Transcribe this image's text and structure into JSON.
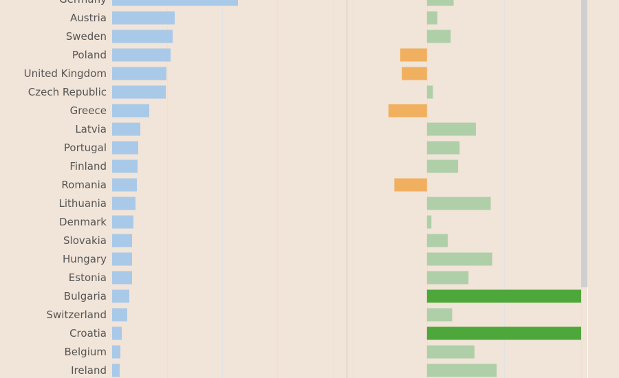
{
  "colors": {
    "background": "#f1e4d8",
    "gridline": "#e3e3e3",
    "left_bar": "#a9c9e8",
    "decrease": "#f0b060",
    "increase_light": "#aecfa8",
    "increase_strong": "#4ea73a",
    "separator": "#c9c4be",
    "scrollbar": "#cfcfcf",
    "label_text": "#555555"
  },
  "chart_data": [
    {
      "type": "bar",
      "orientation": "horizontal",
      "categories": [
        "Germany",
        "Austria",
        "Sweden",
        "Poland",
        "United Kingdom",
        "Czech Republic",
        "Greece",
        "Latvia",
        "Portugal",
        "Finland",
        "Romania",
        "Lithuania",
        "Denmark",
        "Slovakia",
        "Hungary",
        "Estonia",
        "Bulgaria",
        "Switzerland",
        "Croatia",
        "Belgium",
        "Ireland"
      ],
      "values": [
        183,
        91,
        88,
        85,
        79,
        78,
        54,
        41,
        38,
        37,
        36,
        34,
        31,
        29,
        29,
        29,
        25,
        22,
        14,
        12,
        11
      ],
      "xlim": [
        0,
        362
      ],
      "grid_at": [
        80,
        160,
        240,
        322
      ],
      "grid": true,
      "title": "",
      "xlabel": "",
      "ylabel": ""
    },
    {
      "type": "bar",
      "orientation": "horizontal",
      "categories": [
        "Germany",
        "Austria",
        "Sweden",
        "Poland",
        "United Kingdom",
        "Czech Republic",
        "Greece",
        "Latvia",
        "Portugal",
        "Finland",
        "Romania",
        "Lithuania",
        "Denmark",
        "Slovakia",
        "Hungary",
        "Estonia",
        "Bulgaria",
        "Switzerland",
        "Croatia",
        "Belgium",
        "Ireland"
      ],
      "values": [
        18,
        7,
        16,
        -18,
        -17,
        4,
        -26,
        33,
        22,
        21,
        -22,
        43,
        3,
        14,
        44,
        28,
        104,
        17,
        104,
        32,
        47
      ],
      "highlight": [
        "Bulgaria",
        "Croatia"
      ],
      "xlim": [
        -50,
        104
      ],
      "grid_at": [
        -50,
        52,
        104
      ],
      "zero_line": true,
      "grid": true,
      "title": "",
      "xlabel": "",
      "ylabel": ""
    }
  ]
}
